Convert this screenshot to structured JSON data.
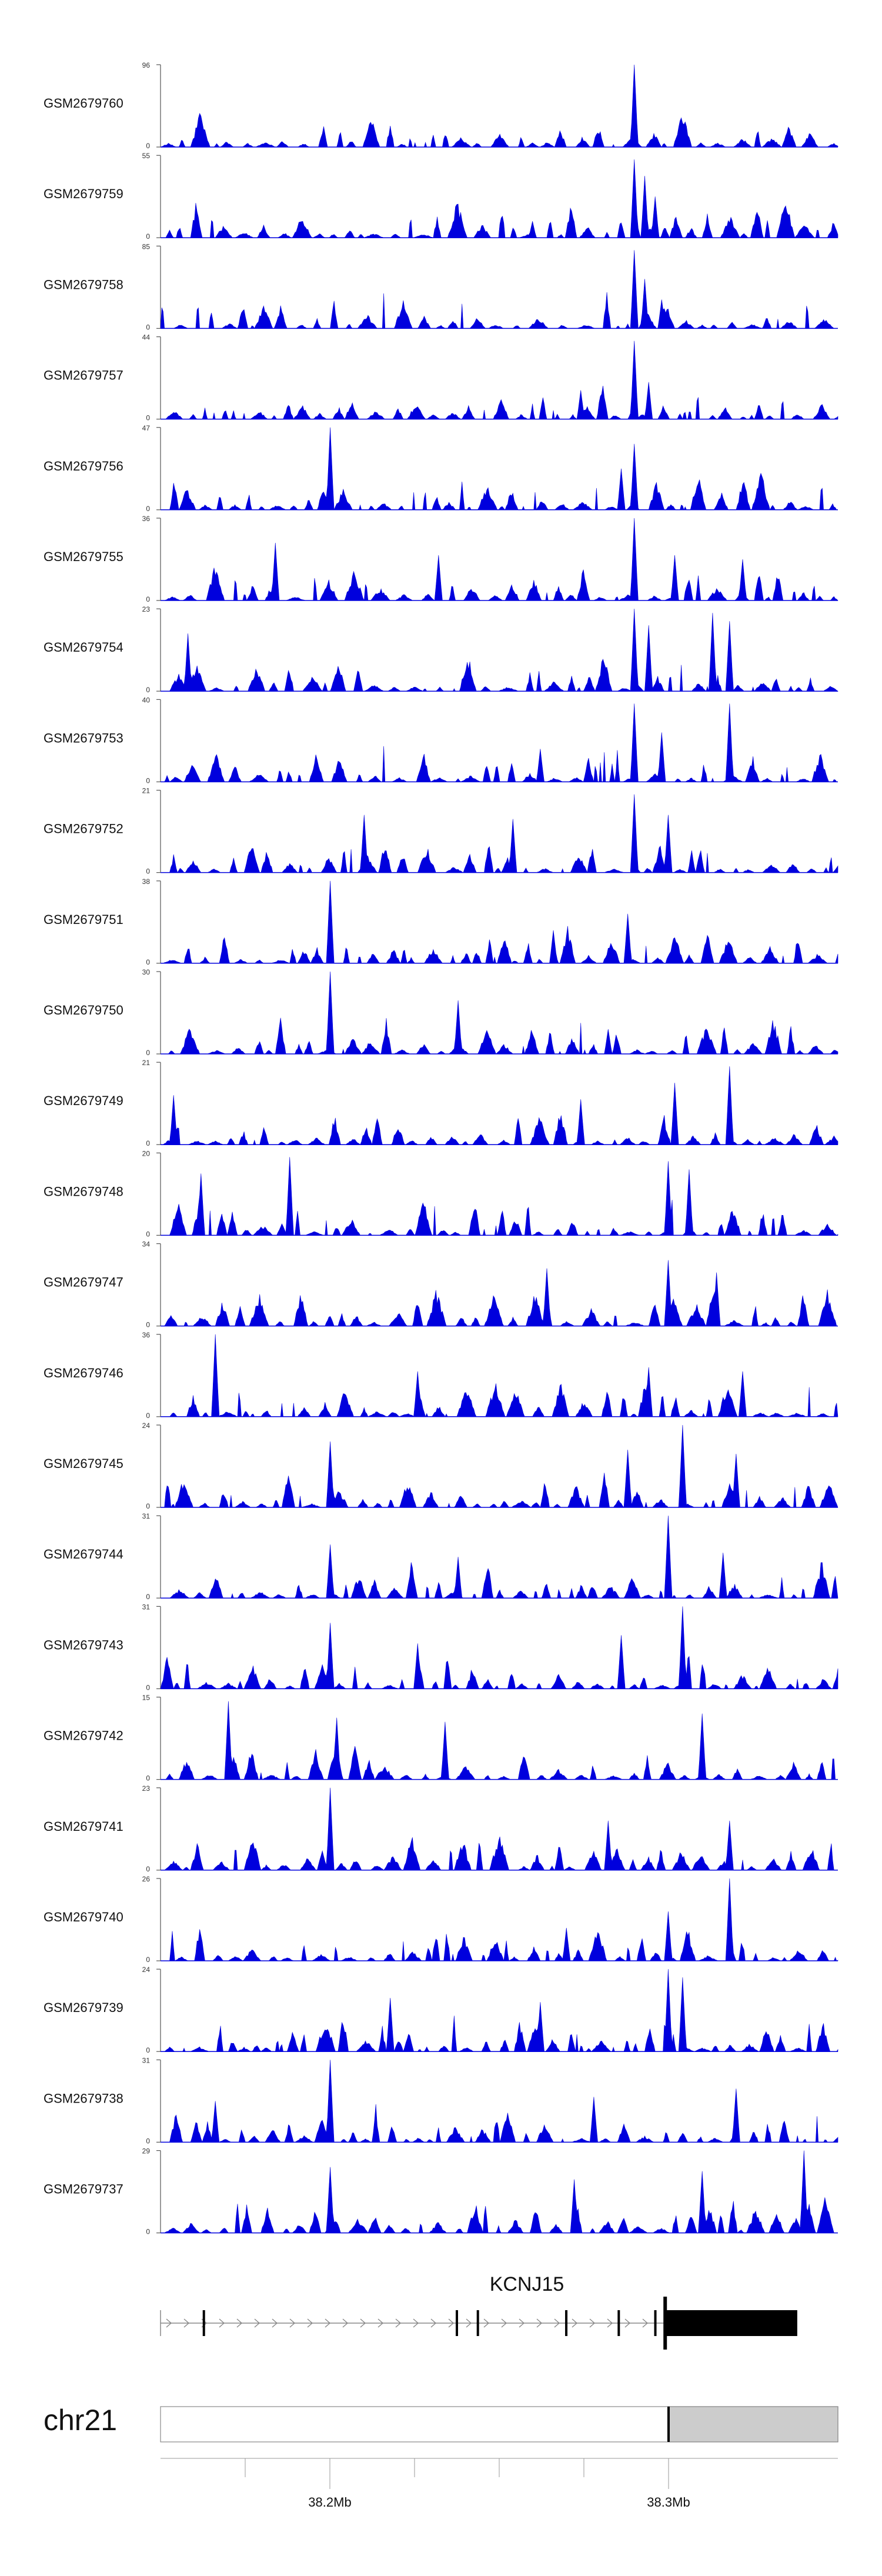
{
  "chart_data": {
    "type": "area",
    "colors": {
      "signal": "#0000dd",
      "axis": "#555555",
      "gene": "#000000",
      "intron": "#888888",
      "highlight": "#cccccc"
    },
    "x_range_mb": [
      38.15,
      38.35
    ],
    "tracks": [
      {
        "name": "GSM2679760",
        "ymax": "96",
        "ymin": "0",
        "peaks": [
          [
            0.7,
            1.0
          ],
          [
            0.24,
            0.25
          ]
        ]
      },
      {
        "name": "GSM2679759",
        "ymax": "55",
        "ymin": "0",
        "peaks": [
          [
            0.7,
            0.95
          ],
          [
            0.715,
            0.75
          ],
          [
            0.73,
            0.5
          ],
          [
            0.55,
            0.2
          ]
        ]
      },
      {
        "name": "GSM2679758",
        "ymax": "85",
        "ymin": "0",
        "peaks": [
          [
            0.7,
            0.95
          ],
          [
            0.715,
            0.6
          ],
          [
            0.74,
            0.35
          ]
        ]
      },
      {
        "name": "GSM2679757",
        "ymax": "44",
        "ymin": "0",
        "peaks": [
          [
            0.7,
            0.95
          ],
          [
            0.72,
            0.45
          ],
          [
            0.62,
            0.35
          ]
        ]
      },
      {
        "name": "GSM2679756",
        "ymax": "47",
        "ymin": "0",
        "peaks": [
          [
            0.25,
            1.0
          ],
          [
            0.7,
            0.8
          ],
          [
            0.68,
            0.5
          ]
        ]
      },
      {
        "name": "GSM2679755",
        "ymax": "36",
        "ymin": "0",
        "peaks": [
          [
            0.7,
            1.0
          ],
          [
            0.17,
            0.7
          ],
          [
            0.41,
            0.55
          ],
          [
            0.76,
            0.55
          ],
          [
            0.86,
            0.5
          ]
        ]
      },
      {
        "name": "GSM2679754",
        "ymax": "23",
        "ymin": "0",
        "peaks": [
          [
            0.7,
            1.0
          ],
          [
            0.815,
            0.95
          ],
          [
            0.84,
            0.85
          ],
          [
            0.72,
            0.8
          ],
          [
            0.04,
            0.7
          ]
        ]
      },
      {
        "name": "GSM2679753",
        "ymax": "40",
        "ymin": "0",
        "peaks": [
          [
            0.7,
            0.95
          ],
          [
            0.84,
            0.95
          ],
          [
            0.74,
            0.6
          ],
          [
            0.56,
            0.4
          ]
        ]
      },
      {
        "name": "GSM2679752",
        "ymax": "21",
        "ymin": "0",
        "peaks": [
          [
            0.7,
            0.95
          ],
          [
            0.3,
            0.7
          ],
          [
            0.52,
            0.65
          ],
          [
            0.75,
            0.7
          ]
        ]
      },
      {
        "name": "GSM2679751",
        "ymax": "38",
        "ymin": "0",
        "peaks": [
          [
            0.25,
            1.0
          ],
          [
            0.69,
            0.6
          ],
          [
            0.58,
            0.4
          ]
        ]
      },
      {
        "name": "GSM2679750",
        "ymax": "30",
        "ymin": "0",
        "peaks": [
          [
            0.25,
            1.0
          ],
          [
            0.44,
            0.65
          ],
          [
            0.66,
            0.3
          ]
        ]
      },
      {
        "name": "GSM2679749",
        "ymax": "21",
        "ymin": "0",
        "peaks": [
          [
            0.84,
            0.95
          ],
          [
            0.76,
            0.75
          ],
          [
            0.02,
            0.6
          ],
          [
            0.62,
            0.55
          ]
        ]
      },
      {
        "name": "GSM2679748",
        "ymax": "20",
        "ymin": "0",
        "peaks": [
          [
            0.19,
            0.95
          ],
          [
            0.75,
            0.9
          ],
          [
            0.78,
            0.8
          ],
          [
            0.06,
            0.75
          ]
        ]
      },
      {
        "name": "GSM2679747",
        "ymax": "34",
        "ymin": "0",
        "peaks": [
          [
            0.57,
            0.7
          ],
          [
            0.75,
            0.8
          ],
          [
            0.82,
            0.65
          ]
        ]
      },
      {
        "name": "GSM2679746",
        "ymax": "36",
        "ymin": "0",
        "peaks": [
          [
            0.08,
            1.0
          ],
          [
            0.38,
            0.55
          ],
          [
            0.72,
            0.6
          ],
          [
            0.86,
            0.55
          ]
        ]
      },
      {
        "name": "GSM2679745",
        "ymax": "24",
        "ymin": "0",
        "peaks": [
          [
            0.77,
            1.0
          ],
          [
            0.25,
            0.8
          ],
          [
            0.69,
            0.7
          ],
          [
            0.85,
            0.65
          ]
        ]
      },
      {
        "name": "GSM2679744",
        "ymax": "31",
        "ymin": "0",
        "peaks": [
          [
            0.75,
            1.0
          ],
          [
            0.25,
            0.65
          ],
          [
            0.44,
            0.5
          ],
          [
            0.83,
            0.55
          ]
        ]
      },
      {
        "name": "GSM2679743",
        "ymax": "31",
        "ymin": "0",
        "peaks": [
          [
            0.77,
            1.0
          ],
          [
            0.25,
            0.8
          ],
          [
            0.68,
            0.65
          ],
          [
            0.38,
            0.55
          ]
        ]
      },
      {
        "name": "GSM2679742",
        "ymax": "15",
        "ymin": "0",
        "peaks": [
          [
            0.1,
            0.95
          ],
          [
            0.26,
            0.75
          ],
          [
            0.42,
            0.7
          ],
          [
            0.8,
            0.8
          ]
        ]
      },
      {
        "name": "GSM2679741",
        "ymax": "23",
        "ymin": "0",
        "peaks": [
          [
            0.25,
            1.0
          ],
          [
            0.66,
            0.6
          ],
          [
            0.84,
            0.6
          ]
        ]
      },
      {
        "name": "GSM2679740",
        "ymax": "26",
        "ymin": "0",
        "peaks": [
          [
            0.84,
            1.0
          ],
          [
            0.75,
            0.6
          ],
          [
            0.6,
            0.4
          ]
        ]
      },
      {
        "name": "GSM2679739",
        "ymax": "24",
        "ymin": "0",
        "peaks": [
          [
            0.75,
            1.0
          ],
          [
            0.77,
            0.9
          ],
          [
            0.34,
            0.65
          ],
          [
            0.56,
            0.6
          ]
        ]
      },
      {
        "name": "GSM2679738",
        "ymax": "31",
        "ymin": "0",
        "peaks": [
          [
            0.25,
            1.0
          ],
          [
            0.85,
            0.65
          ],
          [
            0.64,
            0.55
          ],
          [
            0.08,
            0.5
          ]
        ]
      },
      {
        "name": "GSM2679737",
        "ymax": "29",
        "ymin": "0",
        "peaks": [
          [
            0.95,
            1.0
          ],
          [
            0.25,
            0.8
          ],
          [
            0.8,
            0.75
          ],
          [
            0.61,
            0.65
          ]
        ]
      }
    ],
    "gene": {
      "name": "KCNJ15",
      "start_mb": 38.15,
      "end_mb": 38.3375,
      "strand": "+",
      "exons_mb": [
        38.1628,
        38.2375,
        38.2437,
        38.2698,
        38.2853,
        38.2961,
        38.299,
        38.2998
      ],
      "cds_mb": [
        38.299,
        38.338
      ]
    },
    "chromosome": {
      "name": "chr21",
      "highlight_start_mb": 38.3,
      "tick_labels": [
        {
          "mb": 38.2,
          "label": "38.2Mb"
        },
        {
          "mb": 38.3,
          "label": "38.3Mb"
        }
      ],
      "minor_ticks_mb": [
        38.175,
        38.2,
        38.225,
        38.25,
        38.275,
        38.3
      ]
    }
  }
}
